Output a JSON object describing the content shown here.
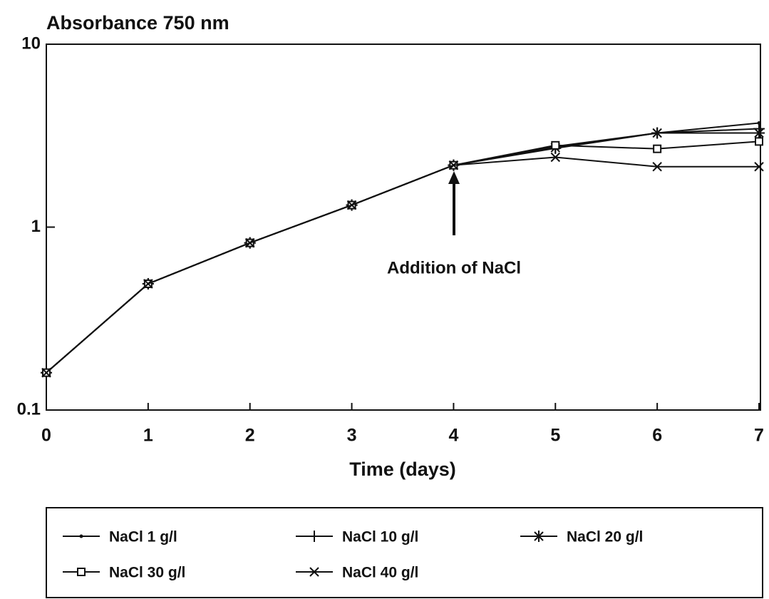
{
  "chart_data": {
    "type": "line",
    "title": "Absorbance 750 nm",
    "x_label": "Time (days)",
    "annotation": "Addition of NaCl",
    "x": [
      0,
      1,
      2,
      3,
      4,
      5,
      6,
      7
    ],
    "xlim": [
      0,
      7
    ],
    "xticks": [
      0,
      1,
      2,
      3,
      4,
      5,
      6,
      7
    ],
    "ylim": [
      0.1,
      10
    ],
    "yticks": [
      0.1,
      1,
      10
    ],
    "log_y": true,
    "grid": false,
    "series": [
      {
        "name": "NaCl 1 g/l",
        "color": "#111111",
        "marker": "dot",
        "values": [
          0.16,
          0.49,
          0.82,
          1.32,
          2.18,
          2.76,
          3.27,
          3.71
        ]
      },
      {
        "name": "NaCl 10 g/l",
        "color": "#111111",
        "marker": "plus",
        "values": [
          0.16,
          0.49,
          0.82,
          1.32,
          2.18,
          2.7,
          3.27,
          3.45
        ]
      },
      {
        "name": "NaCl 20 g/l",
        "color": "#111111",
        "marker": "asterisk",
        "values": [
          0.16,
          0.49,
          0.82,
          1.32,
          2.18,
          2.72,
          3.27,
          3.27
        ]
      },
      {
        "name": "NaCl 30 g/l",
        "color": "#111111",
        "marker": "square",
        "values": [
          0.16,
          0.49,
          0.82,
          1.32,
          2.18,
          2.8,
          2.68,
          2.94
        ]
      },
      {
        "name": "NaCl 40 g/l",
        "color": "#111111",
        "marker": "x",
        "values": [
          0.16,
          0.49,
          0.82,
          1.32,
          2.18,
          2.41,
          2.14,
          2.14
        ]
      }
    ]
  }
}
